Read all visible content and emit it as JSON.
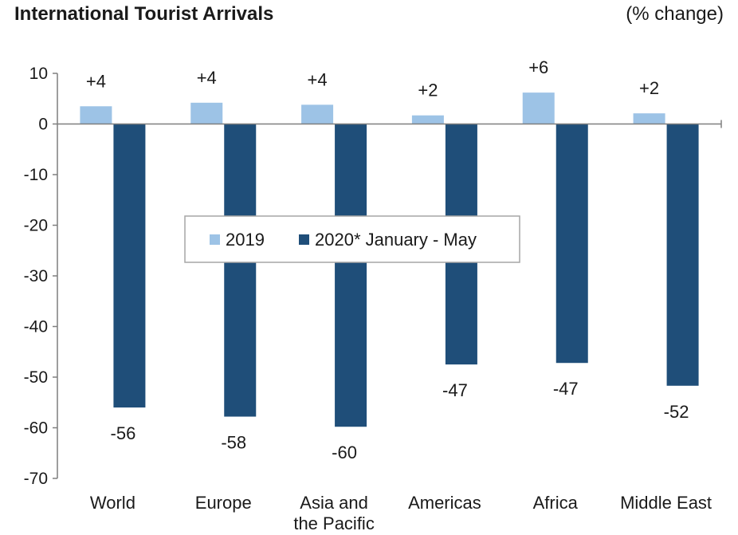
{
  "chart_data": {
    "type": "bar",
    "title": "International Tourist Arrivals",
    "unit_label": "(% change)",
    "categories": [
      [
        "World"
      ],
      [
        "Europe"
      ],
      [
        "Asia and",
        "the Pacific"
      ],
      [
        "Americas"
      ],
      [
        "Africa"
      ],
      [
        "Middle East"
      ]
    ],
    "series": [
      {
        "name": "2019",
        "values": [
          3.5,
          4.2,
          3.8,
          1.7,
          6.2,
          2.1
        ],
        "labels": [
          "+4",
          "+4",
          "+4",
          "+2",
          "+6",
          "+2"
        ],
        "color": "#9dc3e6"
      },
      {
        "name": "2020* January - May",
        "values": [
          -56,
          -57.8,
          -59.8,
          -47.5,
          -47.2,
          -51.7
        ],
        "labels": [
          "-56",
          "-58",
          "-60",
          "-47",
          "-47",
          "-52"
        ],
        "color": "#1f4e79"
      }
    ],
    "ylim": [
      -70,
      10
    ],
    "yticks": [
      10,
      0,
      -10,
      -20,
      -30,
      -40,
      -50,
      -60,
      -70
    ],
    "legend_position": "center",
    "grid": false
  }
}
